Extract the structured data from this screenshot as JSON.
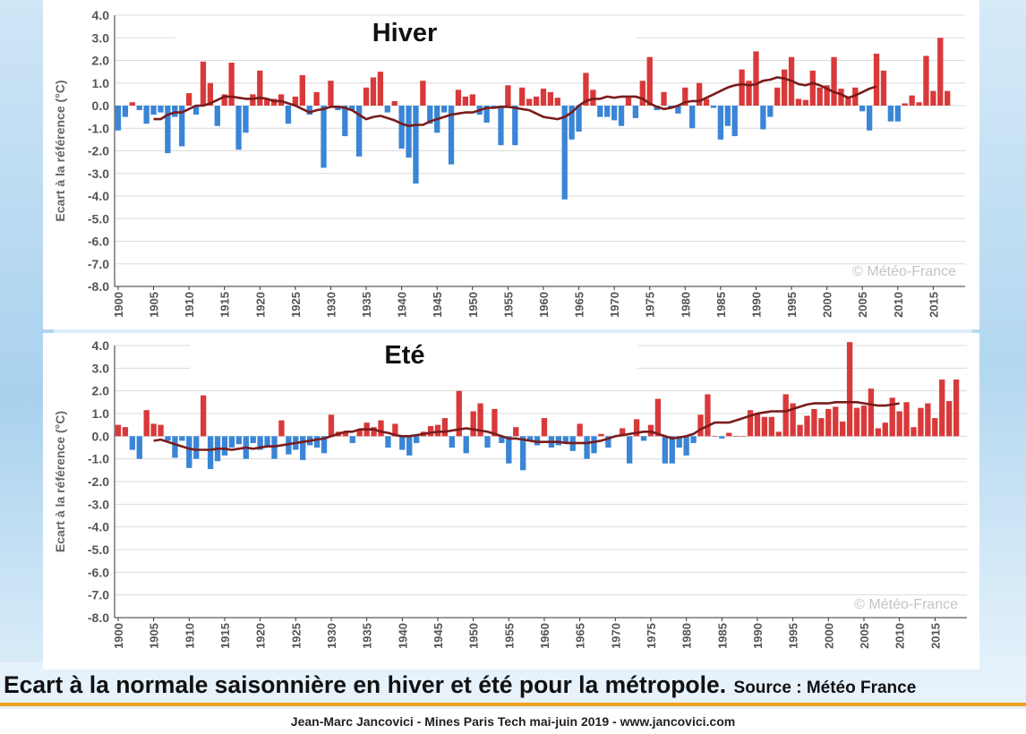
{
  "caption": {
    "main": "Ecart à la normale saisonnière en hiver et été pour la métropole.",
    "source": "Source : Météo France"
  },
  "footer": "Jean-Marc Jancovici - Mines Paris Tech mai-juin 2019 - www.jancovici.com",
  "colors": {
    "positive": "#d9393a",
    "negative": "#3a85d6",
    "trend": "#7a1b1b",
    "grid": "#dcdcdc"
  },
  "chart_data": [
    {
      "type": "bar",
      "title": "Hiver",
      "ylabel": "Ecart à la référence (°C)",
      "watermark": "© Météo-France",
      "ylim": [
        -8,
        4
      ],
      "yticks": [
        4.0,
        3.0,
        2.0,
        1.0,
        0.0,
        -1.0,
        -2.0,
        -3.0,
        -4.0,
        -5.0,
        -6.0,
        -7.0,
        -8.0
      ],
      "xticks": [
        1900,
        1905,
        1910,
        1915,
        1920,
        1925,
        1930,
        1935,
        1940,
        1945,
        1950,
        1955,
        1960,
        1965,
        1970,
        1975,
        1980,
        1985,
        1990,
        1995,
        2000,
        2005,
        2010,
        2015
      ],
      "grid": true,
      "start_year": 1900,
      "values": [
        -1.1,
        -0.5,
        0.15,
        -0.2,
        -0.8,
        -0.4,
        -0.3,
        -2.1,
        -0.5,
        -1.8,
        0.55,
        -0.4,
        1.95,
        1.0,
        -0.9,
        0.5,
        1.9,
        -1.95,
        -1.2,
        0.5,
        1.55,
        0.3,
        0.3,
        0.5,
        -0.8,
        0.4,
        1.35,
        -0.4,
        0.6,
        -2.75,
        1.1,
        -0.2,
        -1.35,
        -0.2,
        -2.25,
        0.8,
        1.25,
        1.5,
        -0.3,
        0.2,
        -1.9,
        -2.3,
        -3.45,
        1.1,
        -0.8,
        -1.2,
        -0.3,
        -2.6,
        0.7,
        0.4,
        0.5,
        -0.4,
        -0.75,
        -0.1,
        -1.75,
        0.9,
        -1.75,
        0.8,
        0.3,
        0.4,
        0.75,
        0.6,
        0.35,
        -4.15,
        -1.5,
        -1.15,
        1.45,
        0.7,
        -0.5,
        -0.5,
        -0.65,
        -0.9,
        0.4,
        -0.55,
        1.1,
        2.15,
        -0.2,
        0.6,
        -0.1,
        -0.35,
        0.8,
        -1.0,
        1.0,
        0.3,
        -0.1,
        -1.5,
        -0.9,
        -1.35,
        1.6,
        1.1,
        2.4,
        -1.05,
        -0.5,
        0.8,
        1.6,
        2.15,
        0.3,
        0.25,
        1.55,
        0.8,
        0.9,
        2.15,
        0.75,
        0.4,
        0.8,
        -0.25,
        -1.1,
        2.3,
        1.55,
        -0.7,
        -0.7,
        0.1,
        0.45,
        0.15,
        2.2,
        0.65,
        3.0,
        0.65
      ],
      "trend_start": 1905,
      "trend": [
        -0.6,
        -0.6,
        -0.4,
        -0.3,
        -0.3,
        -0.15,
        0.0,
        0.0,
        0.1,
        0.25,
        0.4,
        0.4,
        0.35,
        0.3,
        0.3,
        0.35,
        0.3,
        0.2,
        0.2,
        0.1,
        0.0,
        -0.15,
        -0.3,
        -0.2,
        -0.15,
        -0.05,
        -0.05,
        -0.1,
        -0.2,
        -0.4,
        -0.6,
        -0.5,
        -0.45,
        -0.55,
        -0.65,
        -0.8,
        -0.9,
        -0.85,
        -0.85,
        -0.7,
        -0.6,
        -0.5,
        -0.4,
        -0.35,
        -0.3,
        -0.3,
        -0.2,
        -0.1,
        -0.1,
        -0.05,
        -0.05,
        -0.1,
        -0.15,
        -0.2,
        -0.35,
        -0.5,
        -0.55,
        -0.6,
        -0.5,
        -0.3,
        0.0,
        0.2,
        0.3,
        0.3,
        0.4,
        0.35,
        0.4,
        0.4,
        0.4,
        0.3,
        0.1,
        -0.05,
        -0.15,
        -0.1,
        0.0,
        0.15,
        0.2,
        0.2,
        0.35,
        0.5,
        0.65,
        0.8,
        0.9,
        0.95,
        0.9,
        0.95,
        1.1,
        1.15,
        1.25,
        1.2,
        1.1,
        0.95,
        0.9,
        1.0,
        0.9,
        0.75,
        0.6,
        0.5,
        0.35,
        0.45,
        0.6,
        0.75,
        0.85
      ]
    },
    {
      "type": "bar",
      "title": "Eté",
      "ylabel": "Ecart à la référence (°C)",
      "watermark": "© Météo-France",
      "ylim": [
        -8,
        4
      ],
      "yticks": [
        4.0,
        3.0,
        2.0,
        1.0,
        0.0,
        -1.0,
        -2.0,
        -3.0,
        -4.0,
        -5.0,
        -6.0,
        -7.0,
        -8.0
      ],
      "xticks": [
        1900,
        1905,
        1910,
        1915,
        1920,
        1925,
        1930,
        1935,
        1940,
        1945,
        1950,
        1955,
        1960,
        1965,
        1970,
        1975,
        1980,
        1985,
        1990,
        1995,
        2000,
        2005,
        2010,
        2015
      ],
      "grid": true,
      "start_year": 1900,
      "values": [
        0.5,
        0.4,
        -0.6,
        -1.0,
        1.15,
        0.55,
        0.5,
        -0.2,
        -0.95,
        -0.2,
        -1.4,
        -1.0,
        1.8,
        -1.45,
        -1.1,
        -0.85,
        -0.5,
        -0.35,
        -1.0,
        -0.3,
        -0.6,
        -0.5,
        -1.0,
        0.7,
        -0.8,
        -0.6,
        -1.05,
        -0.4,
        -0.5,
        -0.75,
        0.95,
        0.2,
        0.2,
        -0.3,
        0.3,
        0.6,
        0.4,
        0.7,
        -0.5,
        0.55,
        -0.6,
        -0.85,
        -0.3,
        0.2,
        0.45,
        0.5,
        0.8,
        -0.5,
        2.0,
        -0.75,
        1.1,
        1.45,
        -0.5,
        1.2,
        -0.3,
        -1.2,
        0.4,
        -1.5,
        -0.2,
        -0.4,
        0.8,
        -0.5,
        -0.4,
        -0.3,
        -0.65,
        0.55,
        -1.0,
        -0.75,
        0.1,
        -0.5,
        0.0,
        0.35,
        -1.2,
        0.75,
        -0.2,
        0.5,
        1.65,
        -1.2,
        -1.2,
        -0.5,
        -0.85,
        -0.3,
        0.95,
        1.85,
        0.0,
        -0.1,
        0.15,
        0.0,
        0.0,
        1.15,
        1.0,
        0.85,
        0.85,
        0.2,
        1.85,
        1.45,
        0.5,
        0.9,
        1.2,
        0.8,
        1.2,
        1.3,
        0.65,
        4.15,
        1.25,
        1.35,
        2.1,
        0.35,
        0.6,
        1.7,
        1.1,
        1.5,
        0.4,
        1.25,
        1.45,
        0.8,
        2.5,
        1.55,
        2.5
      ],
      "trend_start": 1905,
      "trend": [
        -0.2,
        -0.15,
        -0.25,
        -0.35,
        -0.45,
        -0.55,
        -0.6,
        -0.6,
        -0.6,
        -0.55,
        -0.55,
        -0.6,
        -0.55,
        -0.5,
        -0.55,
        -0.5,
        -0.45,
        -0.45,
        -0.4,
        -0.35,
        -0.3,
        -0.25,
        -0.2,
        -0.15,
        -0.1,
        0.0,
        0.1,
        0.2,
        0.2,
        0.3,
        0.3,
        0.3,
        0.2,
        0.15,
        0.05,
        0.0,
        0.0,
        0.05,
        0.1,
        0.15,
        0.2,
        0.2,
        0.25,
        0.3,
        0.35,
        0.3,
        0.25,
        0.2,
        0.1,
        0.0,
        -0.1,
        -0.1,
        -0.15,
        -0.2,
        -0.25,
        -0.25,
        -0.25,
        -0.25,
        -0.3,
        -0.3,
        -0.3,
        -0.3,
        -0.25,
        -0.2,
        -0.1,
        0.0,
        0.05,
        0.1,
        0.15,
        0.2,
        0.2,
        0.1,
        0.0,
        -0.1,
        -0.05,
        0.0,
        0.1,
        0.3,
        0.45,
        0.6,
        0.6,
        0.6,
        0.7,
        0.8,
        0.9,
        1.0,
        1.05,
        1.1,
        1.1,
        1.1,
        1.2,
        1.3,
        1.4,
        1.45,
        1.45,
        1.45,
        1.5,
        1.5,
        1.5,
        1.5,
        1.45,
        1.4,
        1.35,
        1.35,
        1.4,
        1.45
      ]
    }
  ]
}
